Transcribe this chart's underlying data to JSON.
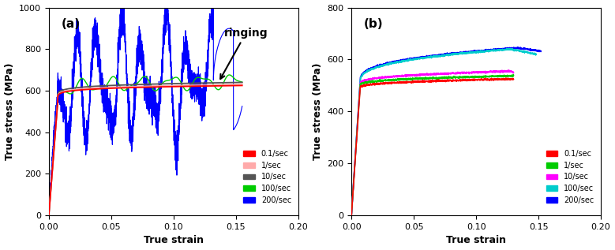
{
  "fig_width": 7.79,
  "fig_height": 3.17,
  "dpi": 100,
  "background_color": "#ffffff",
  "panel_a": {
    "label": "(a)",
    "xlabel": "True strain",
    "ylabel": "True stress (MPa)",
    "xlim": [
      0.0,
      0.2
    ],
    "ylim": [
      0,
      1000
    ],
    "xticks": [
      0.0,
      0.05,
      0.1,
      0.15,
      0.2
    ],
    "yticks": [
      0,
      200,
      400,
      600,
      800,
      1000
    ],
    "annotation_text": "ringing",
    "curves": [
      {
        "label": "0.1/sec",
        "color": "#ff0000",
        "lw": 1.3
      },
      {
        "label": "1/sec",
        "color": "#ffaaaa",
        "lw": 1.3
      },
      {
        "label": "10/sec",
        "color": "#555555",
        "lw": 1.3
      },
      {
        "label": "100/sec",
        "color": "#00cc00",
        "lw": 1.0
      },
      {
        "label": "200/sec",
        "color": "#0000ff",
        "lw": 0.8
      }
    ]
  },
  "panel_b": {
    "label": "(b)",
    "xlabel": "True strain",
    "ylabel": "True stress (MPa)",
    "xlim": [
      0.0,
      0.2
    ],
    "ylim": [
      0,
      800
    ],
    "xticks": [
      0.0,
      0.05,
      0.1,
      0.15,
      0.2
    ],
    "yticks": [
      0,
      200,
      400,
      600,
      800
    ],
    "curves": [
      {
        "label": "0.1/sec",
        "color": "#ff0000",
        "lw": 1.2
      },
      {
        "label": "1/sec",
        "color": "#00cc00",
        "lw": 1.2
      },
      {
        "label": "10/sec",
        "color": "#ff00ff",
        "lw": 1.2
      },
      {
        "label": "100/sec",
        "color": "#00cccc",
        "lw": 1.2
      },
      {
        "label": "200/sec",
        "color": "#0000ff",
        "lw": 1.2
      }
    ]
  }
}
